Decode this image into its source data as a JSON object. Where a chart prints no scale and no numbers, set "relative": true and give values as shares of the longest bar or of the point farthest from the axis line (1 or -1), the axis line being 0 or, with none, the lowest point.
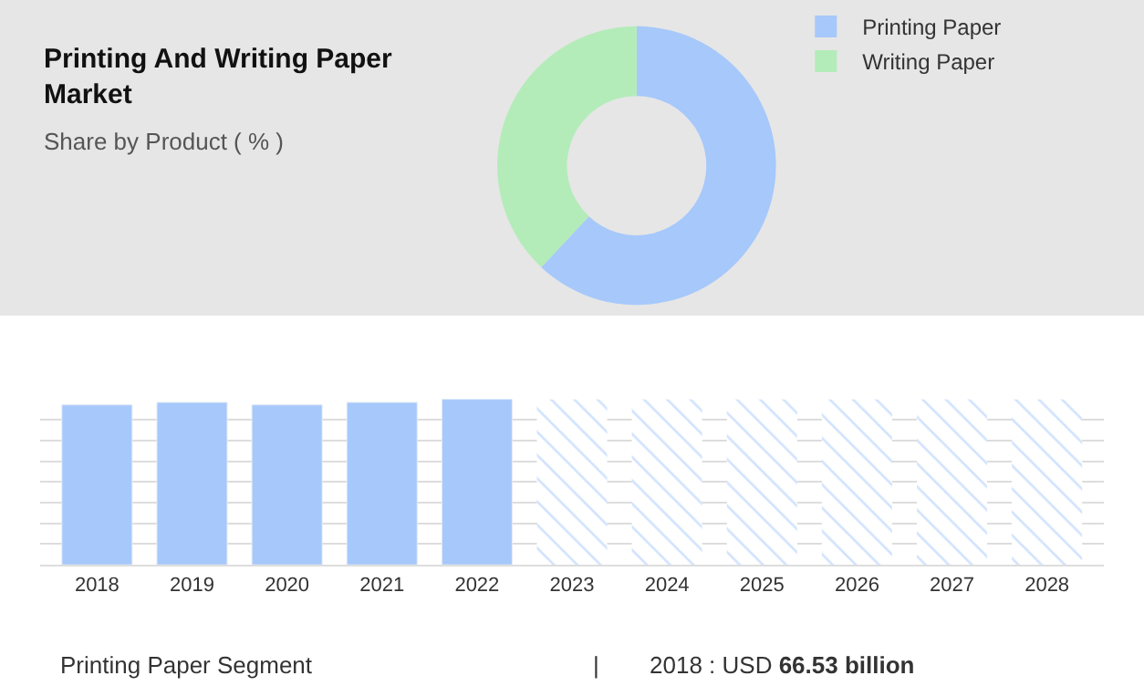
{
  "chart_data": [
    {
      "type": "donut",
      "title": "Printing And Writing Paper Market",
      "subtitle": "Share by Product ( % )",
      "categories": [
        "Printing Paper",
        "Writing Paper"
      ],
      "values": [
        62,
        38
      ],
      "colors": [
        "#a6c8fb",
        "#b3ecb8"
      ],
      "legend": "top right"
    },
    {
      "type": "bar",
      "relative": true,
      "categories": [
        "2018",
        "2019",
        "2020",
        "2021",
        "2022",
        "2023",
        "2024",
        "2025",
        "2026",
        "2027",
        "2028"
      ],
      "grid": "y",
      "series": [
        {
          "color": "#a6c8fb",
          "values": [
            0.966,
            0.981,
            0.966,
            0.981,
            1,
            null,
            null,
            null,
            null,
            null,
            null
          ]
        },
        {
          "color": "#a6c8fb",
          "values": [
            null,
            null,
            null,
            null,
            null,
            1,
            1,
            1,
            1,
            1,
            1
          ]
        }
      ],
      "annotations": [
        "Printing Paper Segment",
        "|",
        "2018 : USD 66.53 billion"
      ]
    }
  ]
}
